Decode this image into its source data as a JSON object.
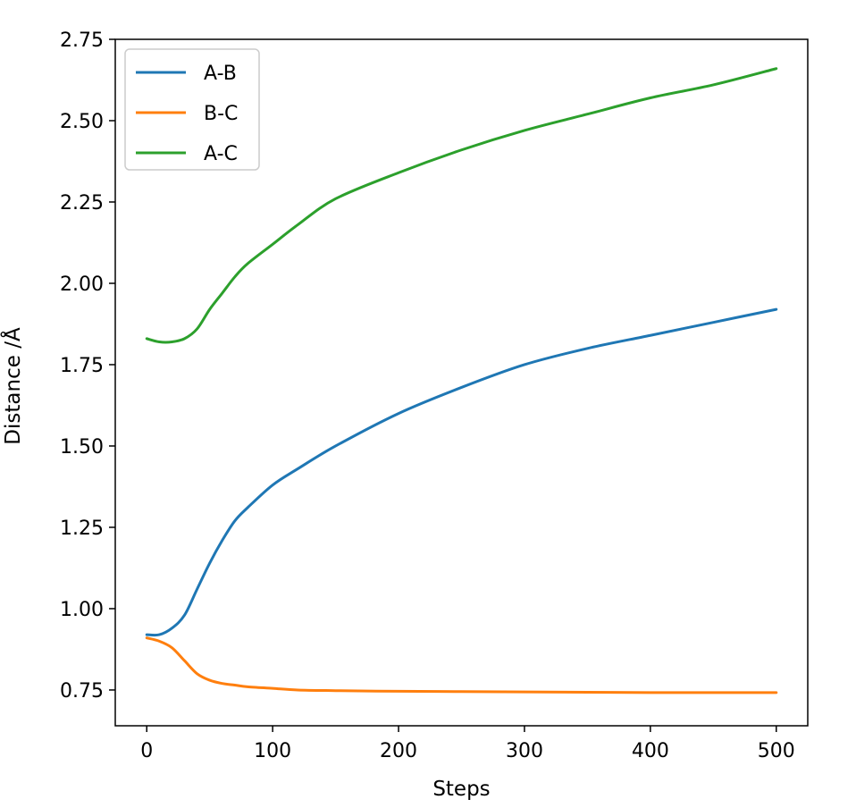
{
  "chart_data": {
    "type": "line",
    "title": "",
    "xlabel": "Steps",
    "ylabel": "Distance /Å",
    "xlim": [
      -25,
      525
    ],
    "ylim": [
      0.64,
      2.75
    ],
    "xticks": [
      0,
      100,
      200,
      300,
      400,
      500
    ],
    "xtick_labels": [
      "0",
      "100",
      "200",
      "300",
      "400",
      "500"
    ],
    "yticks": [
      0.75,
      1.0,
      1.25,
      1.5,
      1.75,
      2.0,
      2.25,
      2.5,
      2.75
    ],
    "ytick_labels": [
      "0.75",
      "1.00",
      "1.25",
      "1.50",
      "1.75",
      "2.00",
      "2.25",
      "2.50",
      "2.75"
    ],
    "grid": false,
    "legend_position": "top-left",
    "x": [
      0,
      10,
      20,
      30,
      40,
      50,
      60,
      70,
      80,
      100,
      120,
      150,
      200,
      250,
      300,
      350,
      400,
      450,
      500
    ],
    "series": [
      {
        "name": "A-B",
        "color": "#1f77b4",
        "values": [
          0.92,
          0.92,
          0.94,
          0.98,
          1.06,
          1.14,
          1.21,
          1.27,
          1.31,
          1.38,
          1.43,
          1.5,
          1.6,
          1.68,
          1.75,
          1.8,
          1.84,
          1.88,
          1.92
        ]
      },
      {
        "name": "B-C",
        "color": "#ff7f0e",
        "values": [
          0.91,
          0.9,
          0.88,
          0.84,
          0.8,
          0.78,
          0.77,
          0.765,
          0.76,
          0.755,
          0.75,
          0.748,
          0.746,
          0.745,
          0.744,
          0.743,
          0.742,
          0.742,
          0.742
        ]
      },
      {
        "name": "A-C",
        "color": "#2ca02c",
        "values": [
          1.83,
          1.82,
          1.82,
          1.83,
          1.86,
          1.92,
          1.97,
          2.02,
          2.06,
          2.12,
          2.18,
          2.26,
          2.34,
          2.41,
          2.47,
          2.52,
          2.57,
          2.61,
          2.66
        ]
      }
    ]
  }
}
